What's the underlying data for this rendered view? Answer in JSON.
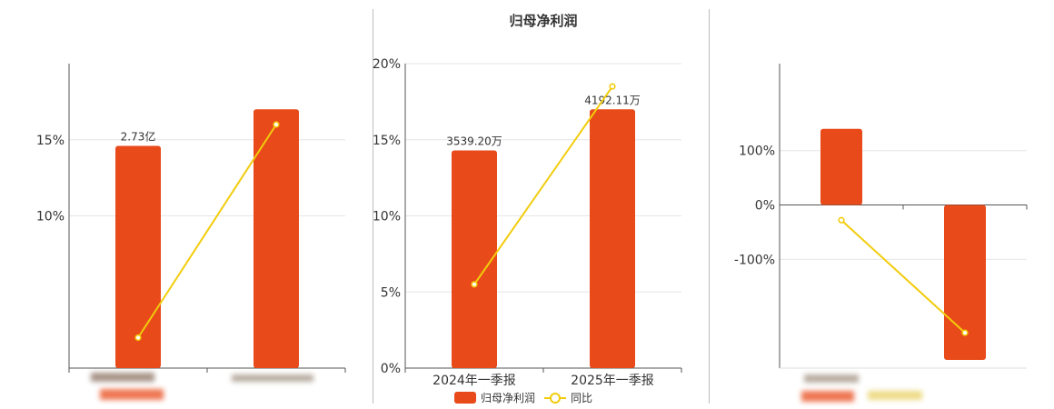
{
  "colors": {
    "bar": "#E84A1A",
    "line": "#F2CC0C",
    "axis": "#555555",
    "grid": "#e6e6e6",
    "divider": "#bdbdbd"
  },
  "chart_data": [
    {
      "type": "bar",
      "title": "",
      "categories": [
        "",
        ""
      ],
      "y_tick_labels": [
        "10%",
        "15%"
      ],
      "y_tick_values": [
        0.1,
        0.15
      ],
      "ylim": [
        0,
        0.2
      ],
      "series": [
        {
          "type": "bar",
          "values": [
            0.146,
            0.17
          ],
          "data_labels": [
            "2.73亿",
            ""
          ]
        },
        {
          "type": "line",
          "values": [
            0.02,
            0.16
          ]
        }
      ],
      "grid": true
    },
    {
      "type": "bar",
      "title": "归母净利润",
      "categories": [
        "2024年一季报",
        "2025年一季报"
      ],
      "y_tick_labels": [
        "0%",
        "5%",
        "10%",
        "15%",
        "20%"
      ],
      "y_tick_values": [
        0,
        0.05,
        0.1,
        0.15,
        0.2
      ],
      "ylim": [
        0,
        0.2
      ],
      "series": [
        {
          "name": "归母净利润",
          "type": "bar",
          "values": [
            0.143,
            0.17
          ],
          "data_labels": [
            "3539.20万",
            "4192.11万"
          ]
        },
        {
          "name": "同比",
          "type": "line",
          "values": [
            0.055,
            0.185
          ]
        }
      ],
      "legend": {
        "position": "bottom"
      },
      "grid": true
    },
    {
      "type": "bar",
      "title": "",
      "categories": [
        "",
        ""
      ],
      "y_tick_labels": [
        "100%",
        "0%",
        "-100%"
      ],
      "y_tick_values": [
        1.0,
        0,
        -1.0
      ],
      "ylim": [
        -3.0,
        2.6
      ],
      "series": [
        {
          "type": "bar",
          "values": [
            1.4,
            -2.85
          ]
        },
        {
          "type": "line",
          "values": [
            -0.28,
            -2.35
          ]
        }
      ],
      "grid": true
    }
  ]
}
